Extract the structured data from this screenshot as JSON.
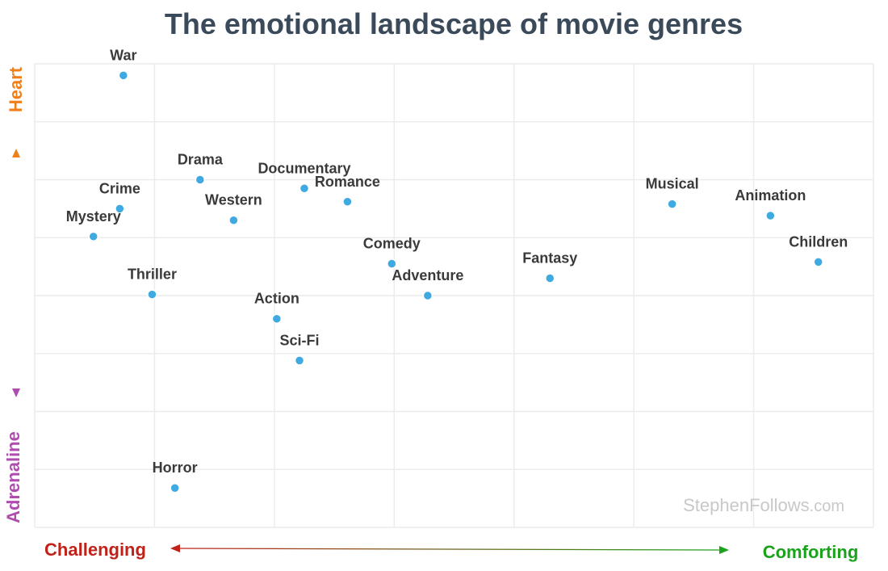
{
  "chart_data": {
    "type": "scatter",
    "title": "The emotional landscape of movie genres",
    "xlabel_left": "Challenging",
    "xlabel_right": "Comforting",
    "ylabel_top": "Heart",
    "ylabel_bottom": "Adrenaline",
    "xlim": [
      0,
      7
    ],
    "ylim": [
      0,
      8
    ],
    "grid": true,
    "points": [
      {
        "label": "War",
        "x": 0.74,
        "y": 7.8
      },
      {
        "label": "Drama",
        "x": 1.38,
        "y": 6.0
      },
      {
        "label": "Documentary",
        "x": 2.25,
        "y": 5.85
      },
      {
        "label": "Romance",
        "x": 2.61,
        "y": 5.62
      },
      {
        "label": "Crime",
        "x": 0.71,
        "y": 5.5
      },
      {
        "label": "Western",
        "x": 1.66,
        "y": 5.3
      },
      {
        "label": "Mystery",
        "x": 0.49,
        "y": 5.02
      },
      {
        "label": "Musical",
        "x": 5.32,
        "y": 5.58
      },
      {
        "label": "Animation",
        "x": 6.14,
        "y": 5.38
      },
      {
        "label": "Children",
        "x": 6.54,
        "y": 4.58
      },
      {
        "label": "Comedy",
        "x": 2.98,
        "y": 4.55
      },
      {
        "label": "Fantasy",
        "x": 4.3,
        "y": 4.3
      },
      {
        "label": "Adventure",
        "x": 3.28,
        "y": 4.0
      },
      {
        "label": "Thriller",
        "x": 0.98,
        "y": 4.02
      },
      {
        "label": "Action",
        "x": 2.02,
        "y": 3.6
      },
      {
        "label": "Sci-Fi",
        "x": 2.21,
        "y": 2.88
      },
      {
        "label": "Horror",
        "x": 1.17,
        "y": 0.68
      }
    ]
  },
  "colors": {
    "title": "#3b4a5a",
    "point": "#3fa9e2",
    "challenging": "#c0221a",
    "comforting": "#1aa31a",
    "heart": "#f07f1a",
    "adrenaline": "#b04cb0",
    "grid": "#ececec"
  },
  "watermark": {
    "main": "StephenFollows",
    "suffix": ".com"
  }
}
